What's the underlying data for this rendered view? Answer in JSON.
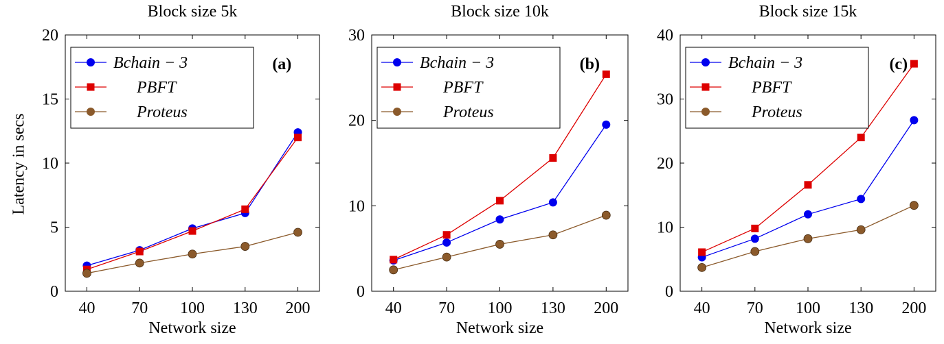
{
  "figure": {
    "shared_ylabel": "Latency in secs",
    "shared_xlabel": "Network size"
  },
  "colors": {
    "bchain": "#0000ee",
    "pbft": "#dd0000",
    "proteus": "#8b5a2b"
  },
  "chart_data": [
    {
      "type": "line",
      "title": "Block size 5k",
      "panel_label": "(a)",
      "xlabel": "Network size",
      "ylabel": "Latency in secs",
      "categories": [
        "40",
        "70",
        "100",
        "130",
        "200"
      ],
      "ylim": [
        0,
        20
      ],
      "yticks": [
        0,
        5,
        10,
        15,
        20
      ],
      "grid": false,
      "legend": "top-left",
      "series": [
        {
          "name": "Bchain − 3",
          "marker": "circle",
          "color": "#0000ee",
          "values": [
            2.0,
            3.2,
            4.9,
            6.1,
            12.4
          ]
        },
        {
          "name": "PBFT",
          "marker": "square",
          "color": "#dd0000",
          "values": [
            1.7,
            3.1,
            4.7,
            6.4,
            12.0
          ]
        },
        {
          "name": "Proteus",
          "marker": "circle",
          "color": "#8b5a2b",
          "values": [
            1.4,
            2.2,
            2.9,
            3.5,
            4.6
          ]
        }
      ]
    },
    {
      "type": "line",
      "title": "Block size 10k",
      "panel_label": "(b)",
      "xlabel": "Network size",
      "ylabel": "",
      "categories": [
        "40",
        "70",
        "100",
        "130",
        "200"
      ],
      "ylim": [
        0,
        30
      ],
      "yticks": [
        0,
        10,
        20,
        30
      ],
      "grid": false,
      "legend": "top-left",
      "series": [
        {
          "name": "Bchain − 3",
          "marker": "circle",
          "color": "#0000ee",
          "values": [
            3.6,
            5.7,
            8.4,
            10.4,
            19.5
          ]
        },
        {
          "name": "PBFT",
          "marker": "square",
          "color": "#dd0000",
          "values": [
            3.7,
            6.6,
            10.6,
            15.6,
            25.4
          ]
        },
        {
          "name": "Proteus",
          "marker": "circle",
          "color": "#8b5a2b",
          "values": [
            2.5,
            4.0,
            5.5,
            6.6,
            8.9
          ]
        }
      ]
    },
    {
      "type": "line",
      "title": "Block size 15k",
      "panel_label": "(c)",
      "xlabel": "Network size",
      "ylabel": "",
      "categories": [
        "40",
        "70",
        "100",
        "130",
        "200"
      ],
      "ylim": [
        0,
        40
      ],
      "yticks": [
        0,
        10,
        20,
        30,
        40
      ],
      "grid": false,
      "legend": "top-left",
      "series": [
        {
          "name": "Bchain − 3",
          "marker": "circle",
          "color": "#0000ee",
          "values": [
            5.3,
            8.2,
            12.0,
            14.4,
            26.7
          ]
        },
        {
          "name": "PBFT",
          "marker": "square",
          "color": "#dd0000",
          "values": [
            6.1,
            9.8,
            16.6,
            24.0,
            35.5
          ]
        },
        {
          "name": "Proteus",
          "marker": "circle",
          "color": "#8b5a2b",
          "values": [
            3.7,
            6.2,
            8.2,
            9.6,
            13.4
          ]
        }
      ]
    }
  ]
}
